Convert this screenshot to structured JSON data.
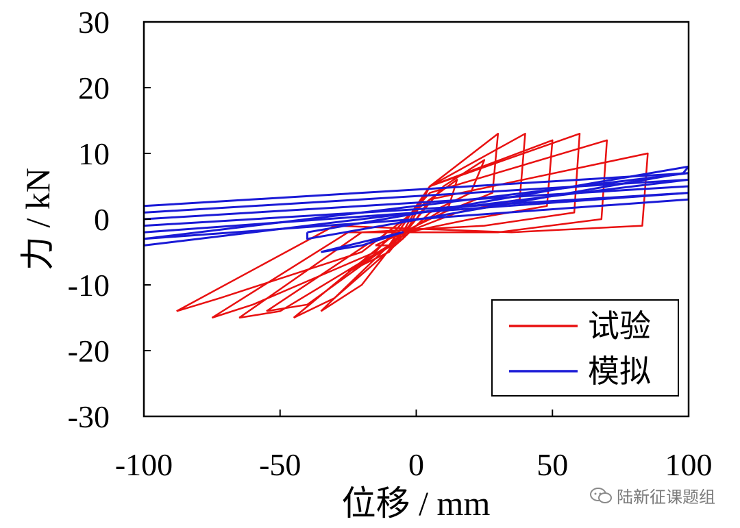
{
  "chart_data": {
    "type": "line",
    "xlabel": "位移 / mm",
    "ylabel": "力 / kN",
    "xlim": [
      -100,
      100
    ],
    "ylim": [
      -30,
      30
    ],
    "xticks": [
      "-100",
      "-50",
      "0",
      "50",
      "100"
    ],
    "yticks": [
      "30",
      "20",
      "10",
      "0",
      "-10",
      "-20",
      "-30"
    ],
    "legend_position": "bottom-right",
    "grid": false,
    "colors": {
      "test": "#e81010",
      "sim": "#1a1ad6"
    },
    "series": [
      {
        "name": "试验",
        "color": "#e81010",
        "loops": [
          {
            "x": [
              -15,
              -5,
              0,
              5,
              15,
              12,
              0,
              -10,
              -15
            ],
            "y": [
              -4,
              -2,
              0,
              3,
              6,
              2,
              -1,
              -4,
              -4
            ]
          },
          {
            "x": [
              -25,
              -10,
              0,
              10,
              25,
              20,
              5,
              -5,
              -25
            ],
            "y": [
              -8,
              -5,
              0,
              5,
              9,
              4,
              1,
              -3,
              -8
            ]
          },
          {
            "x": [
              -35,
              -20,
              -5,
              5,
              30,
              28,
              10,
              -5,
              -35
            ],
            "y": [
              -14,
              -10,
              -2,
              5,
              13,
              4,
              1,
              -2,
              -14
            ]
          },
          {
            "x": [
              -45,
              -30,
              -5,
              5,
              40,
              38,
              15,
              -10,
              -45
            ],
            "y": [
              -15,
              -12,
              -3,
              5,
              13,
              3,
              1,
              -3,
              -15
            ]
          },
          {
            "x": [
              -55,
              -40,
              -10,
              5,
              50,
              48,
              20,
              -15,
              -55
            ],
            "y": [
              -14,
              -13,
              -4,
              5,
              12,
              2,
              0,
              -3,
              -14
            ]
          },
          {
            "x": [
              -65,
              -50,
              -10,
              5,
              60,
              58,
              25,
              -20,
              -65
            ],
            "y": [
              -15,
              -14,
              -4,
              5,
              13,
              1,
              -1,
              -2,
              -15
            ]
          },
          {
            "x": [
              -75,
              -60,
              -15,
              5,
              70,
              68,
              30,
              -25,
              -75
            ],
            "y": [
              -15,
              -13,
              -5,
              4,
              12,
              0,
              -2,
              -2,
              -15
            ]
          },
          {
            "x": [
              -88,
              -72,
              -20,
              5,
              85,
              83,
              35,
              -30,
              -88
            ],
            "y": [
              -14,
              -12,
              -5,
              3,
              10,
              -1,
              -2,
              -1,
              -14
            ]
          }
        ]
      },
      {
        "name": "模拟",
        "color": "#1a1ad6",
        "loops": [
          {
            "x": [
              -40,
              100,
              98,
              -40,
              -40
            ],
            "y": [
              -2,
              8,
              7,
              -3,
              -2
            ]
          },
          {
            "x": [
              -100,
              100,
              100,
              -100,
              -100
            ],
            "y": [
              2,
              7,
              6,
              1,
              2
            ]
          },
          {
            "x": [
              -100,
              100,
              100,
              -100,
              -100
            ],
            "y": [
              0,
              5,
              4,
              -1,
              0
            ]
          },
          {
            "x": [
              -100,
              100,
              100,
              -100,
              -100
            ],
            "y": [
              -2,
              4,
              3,
              -3,
              -2
            ]
          },
          {
            "x": [
              -100,
              100,
              100,
              -100,
              -100
            ],
            "y": [
              -3,
              7,
              6,
              -4,
              -3
            ]
          },
          {
            "x": [
              -35,
              -20,
              -5,
              -15,
              -35
            ],
            "y": [
              -5,
              -4,
              -2,
              -3,
              -5
            ]
          }
        ]
      }
    ]
  },
  "watermark": {
    "icon": "wechat-icon",
    "text": "陆新征课题组"
  }
}
